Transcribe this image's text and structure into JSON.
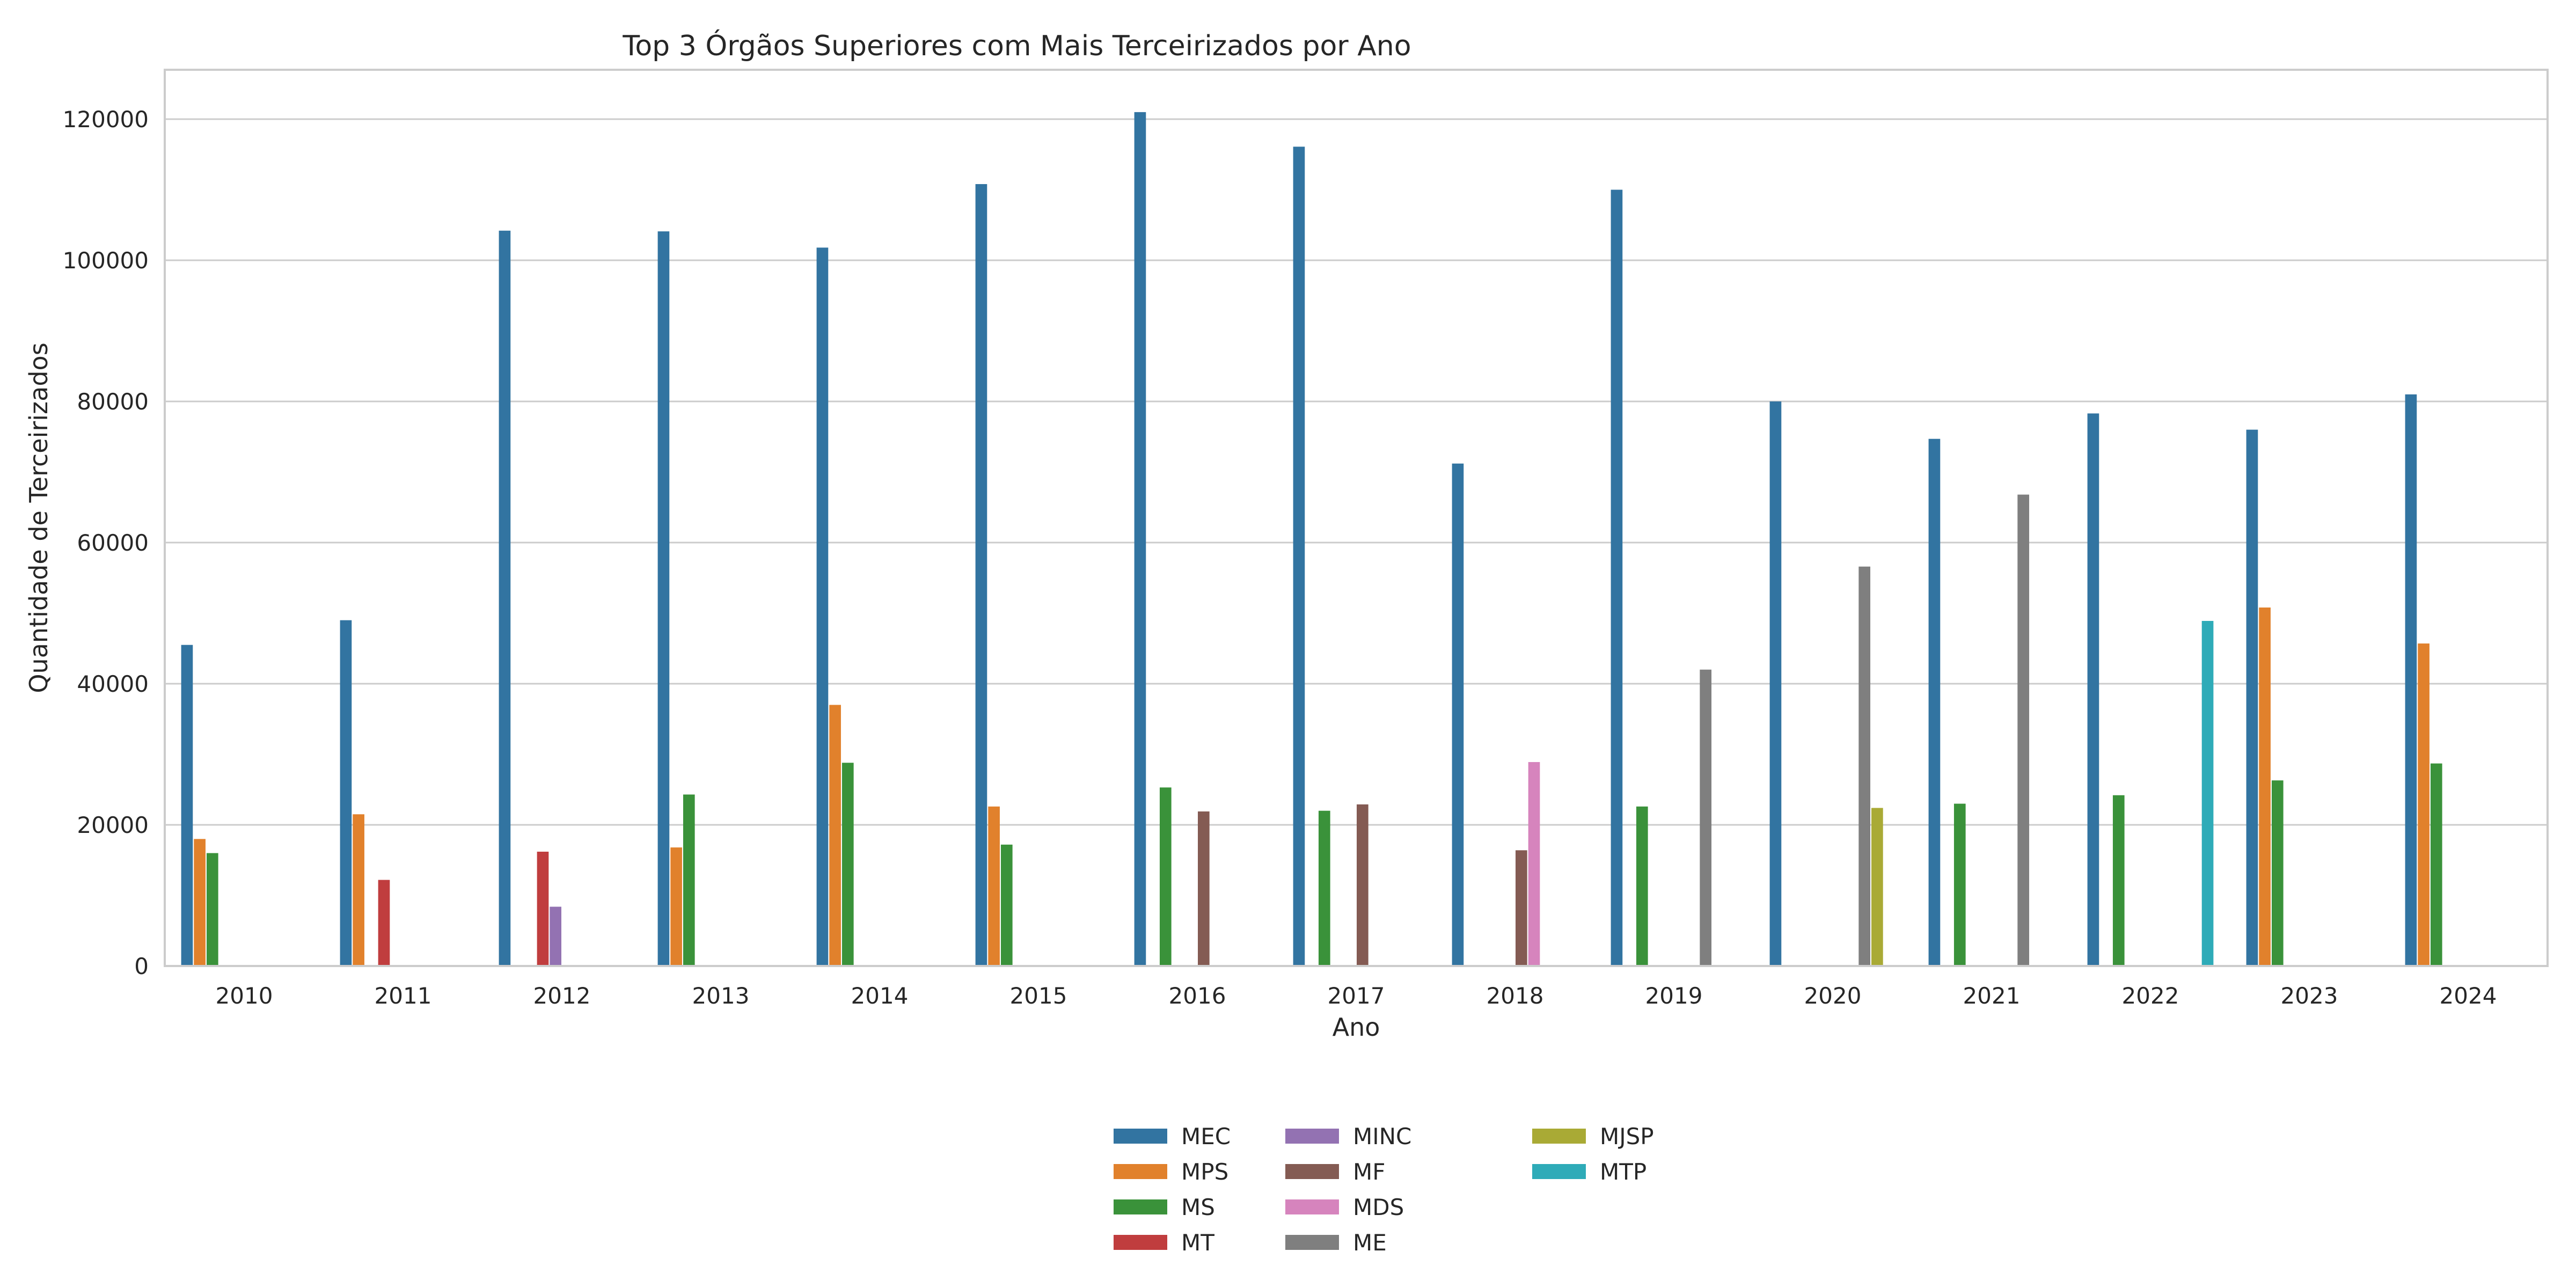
{
  "chart_data": {
    "type": "bar",
    "title": "Top 3 Órgãos Superiores com Mais Terceirizados por Ano",
    "xlabel": "Ano",
    "ylabel": "Quantidade de Terceirizados",
    "ylim": [
      0,
      127000
    ],
    "yticks": [
      0,
      20000,
      40000,
      60000,
      80000,
      100000,
      120000
    ],
    "grid": "horizontal",
    "legend_position": "bottom-center",
    "categories": [
      "2010",
      "2011",
      "2012",
      "2013",
      "2014",
      "2015",
      "2016",
      "2017",
      "2018",
      "2019",
      "2020",
      "2021",
      "2022",
      "2023",
      "2024"
    ],
    "series": [
      {
        "name": "MEC",
        "color": "#3274a1",
        "values": [
          45500,
          49000,
          104200,
          104100,
          101800,
          110800,
          121000,
          116100,
          71200,
          110000,
          80000,
          74700,
          78300,
          76000,
          81000
        ]
      },
      {
        "name": "MPS",
        "color": "#e1812c",
        "values": [
          18000,
          21500,
          null,
          16800,
          37000,
          22600,
          null,
          null,
          null,
          null,
          null,
          null,
          null,
          50800,
          45700
        ]
      },
      {
        "name": "MS",
        "color": "#3a923a",
        "values": [
          16000,
          null,
          null,
          24300,
          28800,
          17200,
          25300,
          22000,
          null,
          22600,
          null,
          23000,
          24200,
          26300,
          28700
        ]
      },
      {
        "name": "MT",
        "color": "#c03d3e",
        "values": [
          null,
          12200,
          16200,
          null,
          null,
          null,
          null,
          null,
          null,
          null,
          null,
          null,
          null,
          null,
          null
        ]
      },
      {
        "name": "MINC",
        "color": "#9372b2",
        "values": [
          null,
          null,
          8400,
          null,
          null,
          null,
          null,
          null,
          null,
          null,
          null,
          null,
          null,
          null,
          null
        ]
      },
      {
        "name": "MF",
        "color": "#845b53",
        "values": [
          null,
          null,
          null,
          null,
          null,
          null,
          21900,
          22900,
          16400,
          null,
          null,
          null,
          null,
          null,
          null
        ]
      },
      {
        "name": "MDS",
        "color": "#d684bd",
        "values": [
          null,
          null,
          null,
          null,
          null,
          null,
          null,
          null,
          28900,
          null,
          null,
          null,
          null,
          null,
          null
        ]
      },
      {
        "name": "ME",
        "color": "#7f7f7f",
        "values": [
          null,
          null,
          null,
          null,
          null,
          null,
          null,
          null,
          null,
          42000,
          56600,
          66800,
          null,
          null,
          null
        ]
      },
      {
        "name": "MJSP",
        "color": "#a9aa35",
        "values": [
          null,
          null,
          null,
          null,
          null,
          null,
          null,
          null,
          null,
          null,
          22400,
          null,
          null,
          null,
          null
        ]
      },
      {
        "name": "MTP",
        "color": "#2eabb8",
        "values": [
          null,
          null,
          null,
          null,
          null,
          null,
          null,
          null,
          null,
          null,
          null,
          null,
          48900,
          null,
          null
        ]
      }
    ]
  }
}
